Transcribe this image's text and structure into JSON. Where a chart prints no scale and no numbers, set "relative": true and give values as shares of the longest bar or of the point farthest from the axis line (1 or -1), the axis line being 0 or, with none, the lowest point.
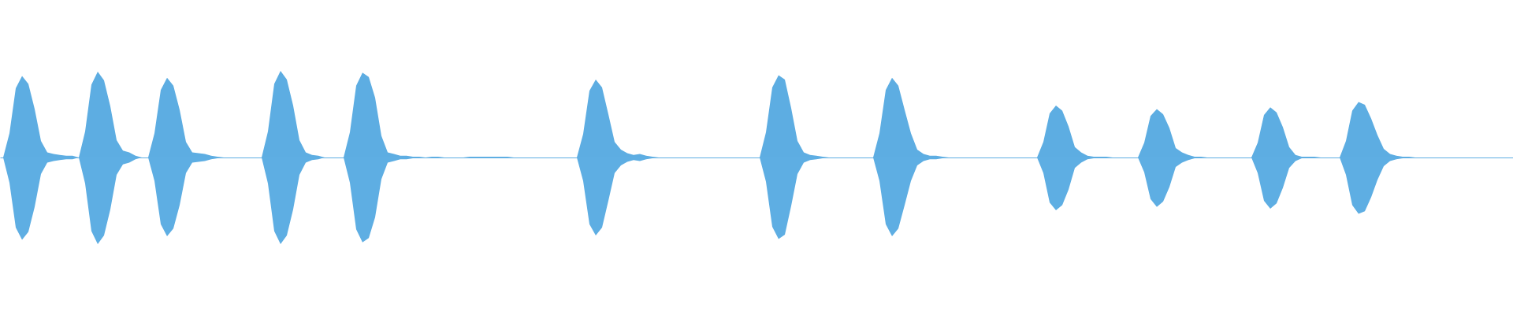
{
  "chart_data": {
    "type": "area",
    "relative": true,
    "categories": [
      null,
      null,
      null,
      null,
      null,
      null,
      null,
      null,
      null,
      null,
      null,
      null,
      null,
      null,
      null,
      null,
      null,
      null,
      null,
      null,
      null,
      null,
      null,
      null,
      null,
      null,
      null,
      null,
      null,
      null,
      null,
      null,
      null,
      null,
      null,
      null,
      null,
      null,
      null,
      null,
      null,
      null,
      null,
      null,
      null,
      null,
      null,
      null,
      null,
      null,
      null,
      null,
      null,
      null,
      null,
      null,
      null,
      null,
      null,
      null,
      null,
      null,
      null,
      null,
      null,
      null,
      null,
      null,
      null,
      null,
      null,
      null,
      null,
      null,
      null,
      null,
      null,
      null,
      null,
      null,
      null,
      null,
      null,
      null,
      null,
      null,
      null,
      null,
      null,
      null,
      null,
      null,
      null,
      null,
      null,
      null,
      null,
      null,
      null,
      null,
      null,
      null,
      null,
      null,
      null,
      null,
      null,
      null,
      null,
      null,
      null,
      null,
      null,
      null,
      null,
      null,
      null,
      null,
      null,
      null,
      null,
      null,
      null,
      null,
      null,
      null,
      null,
      null,
      null,
      null,
      null,
      null,
      null,
      null,
      null,
      null,
      null,
      null,
      null,
      null,
      null,
      null,
      null,
      null,
      null,
      null,
      null,
      null,
      null,
      null,
      null,
      null,
      null,
      null,
      null,
      null,
      null,
      null,
      null,
      null,
      null,
      null,
      null,
      null,
      null,
      null,
      null,
      null,
      null,
      null,
      null,
      null,
      null,
      null,
      null,
      null,
      null,
      null,
      null,
      null,
      null,
      null,
      null,
      null,
      null,
      null,
      null,
      null,
      null,
      null,
      null,
      null,
      null,
      null,
      null,
      null,
      null,
      null,
      null,
      null,
      null,
      null,
      null,
      null,
      null,
      null,
      null,
      null,
      null,
      null,
      null,
      null,
      null,
      null,
      null,
      null,
      null,
      null,
      null,
      null,
      null,
      null,
      null,
      null,
      null,
      null,
      null,
      null,
      null,
      null,
      null,
      null,
      null,
      null,
      null,
      null,
      null,
      null,
      null,
      null
    ],
    "series": [
      {
        "color": "#5dade2",
        "values": [
          0,
          0.28,
          0.8,
          0.94,
          0.85,
          0.56,
          0.19,
          0.06,
          0.04,
          0.03,
          0.02,
          0.02,
          0,
          0.3,
          0.84,
          0.99,
          0.89,
          0.59,
          0.2,
          0.08,
          0.06,
          0.02,
          0,
          0,
          0.28,
          0.78,
          0.92,
          0.83,
          0.55,
          0.18,
          0.06,
          0.05,
          0.04,
          0.02,
          0.01,
          0,
          0,
          0,
          0,
          0,
          0,
          0,
          0.3,
          0.85,
          1,
          0.9,
          0.6,
          0.2,
          0.06,
          0.03,
          0.02,
          0,
          0,
          0,
          0,
          0.29,
          0.83,
          0.98,
          0.93,
          0.69,
          0.25,
          0.06,
          0.04,
          0.02,
          0.02,
          0.01,
          0.01,
          0,
          0.01,
          0.01,
          0,
          0,
          0,
          0,
          0.01,
          0.01,
          0.01,
          0.01,
          0.01,
          0.01,
          0.01,
          0,
          0,
          0,
          0,
          0,
          0,
          0,
          0,
          0,
          0,
          0,
          0.27,
          0.77,
          0.9,
          0.81,
          0.5,
          0.18,
          0.09,
          0.05,
          0.03,
          0.04,
          0.02,
          0.01,
          0,
          0,
          0,
          0,
          0,
          0,
          0,
          0,
          0,
          0,
          0,
          0,
          0,
          0,
          0,
          0,
          0,
          0.29,
          0.81,
          0.95,
          0.9,
          0.57,
          0.19,
          0.06,
          0.03,
          0.02,
          0.01,
          0,
          0,
          0,
          0,
          0,
          0,
          0,
          0,
          0.28,
          0.78,
          0.92,
          0.83,
          0.55,
          0.28,
          0.09,
          0.04,
          0.02,
          0.02,
          0.01,
          0,
          0,
          0,
          0,
          0,
          0,
          0,
          0,
          0,
          0,
          0,
          0,
          0,
          0,
          0,
          0.18,
          0.51,
          0.6,
          0.54,
          0.36,
          0.12,
          0.06,
          0.02,
          0.01,
          0.01,
          0.01,
          0,
          0,
          0,
          0,
          0,
          0.17,
          0.48,
          0.56,
          0.5,
          0.34,
          0.11,
          0.06,
          0.03,
          0.01,
          0.01,
          0,
          0,
          0,
          0,
          0,
          0,
          0,
          0,
          0.17,
          0.49,
          0.58,
          0.52,
          0.35,
          0.12,
          0.03,
          0.01,
          0.01,
          0.01,
          0,
          0,
          0,
          0,
          0.19,
          0.54,
          0.64,
          0.61,
          0.45,
          0.26,
          0.1,
          0.04,
          0.02,
          0.01,
          0.01,
          0,
          0,
          0,
          0,
          0,
          0,
          0,
          0,
          0,
          0,
          0,
          0,
          0,
          0,
          0,
          0
        ]
      },
      {
        "color": "#5eaee3",
        "values": [
          0,
          -0.29,
          -0.81,
          -0.95,
          -0.86,
          -0.57,
          -0.19,
          -0.06,
          -0.04,
          -0.03,
          -0.02,
          -0.02,
          0,
          -0.3,
          -0.85,
          -1,
          -0.9,
          -0.6,
          -0.2,
          -0.08,
          -0.06,
          -0.02,
          0,
          0,
          -0.27,
          -0.77,
          -0.91,
          -0.82,
          -0.55,
          -0.18,
          -0.06,
          -0.05,
          -0.04,
          -0.02,
          -0.01,
          0,
          0,
          0,
          0,
          0,
          0,
          0,
          -0.3,
          -0.85,
          -1,
          -0.9,
          -0.6,
          -0.2,
          -0.06,
          -0.03,
          -0.02,
          0,
          0,
          0,
          0,
          -0.29,
          -0.83,
          -0.98,
          -0.93,
          -0.69,
          -0.25,
          -0.06,
          -0.04,
          -0.02,
          -0.02,
          -0.01,
          -0.01,
          0,
          -0.01,
          -0.01,
          0,
          0,
          0,
          0,
          -0.01,
          -0.01,
          -0.01,
          -0.01,
          -0.01,
          -0.01,
          -0.01,
          0,
          0,
          0,
          0,
          0,
          0,
          0,
          0,
          0,
          0,
          0,
          -0.27,
          -0.77,
          -0.9,
          -0.81,
          -0.5,
          -0.18,
          -0.09,
          -0.05,
          -0.03,
          -0.04,
          -0.02,
          -0.01,
          0,
          0,
          0,
          0,
          0,
          0,
          0,
          0,
          0,
          0,
          0,
          0,
          0,
          0,
          0,
          0,
          0,
          -0.28,
          -0.8,
          -0.94,
          -0.89,
          -0.56,
          -0.19,
          -0.06,
          -0.03,
          -0.02,
          -0.01,
          0,
          0,
          0,
          0,
          0,
          0,
          0,
          0,
          -0.27,
          -0.77,
          -0.91,
          -0.82,
          -0.55,
          -0.27,
          -0.09,
          -0.04,
          -0.02,
          -0.02,
          -0.01,
          0,
          0,
          0,
          0,
          0,
          0,
          0,
          0,
          0,
          0,
          0,
          0,
          0,
          0,
          0,
          -0.18,
          -0.52,
          -0.61,
          -0.55,
          -0.37,
          -0.12,
          -0.06,
          -0.02,
          -0.01,
          -0.01,
          -0.01,
          0,
          0,
          0,
          0,
          0,
          -0.17,
          -0.48,
          -0.57,
          -0.51,
          -0.34,
          -0.11,
          -0.06,
          -0.03,
          -0.01,
          -0.01,
          0,
          0,
          0,
          0,
          0,
          0,
          0,
          0,
          -0.18,
          -0.5,
          -0.59,
          -0.53,
          -0.35,
          -0.12,
          -0.04,
          -0.01,
          -0.01,
          -0.01,
          0,
          0,
          0,
          0,
          -0.2,
          -0.55,
          -0.65,
          -0.62,
          -0.46,
          -0.26,
          -0.1,
          -0.04,
          -0.02,
          -0.01,
          -0.01,
          0,
          0,
          0,
          0,
          0,
          0,
          0,
          0,
          0,
          0,
          0,
          0,
          0,
          0,
          0,
          0
        ]
      }
    ]
  }
}
